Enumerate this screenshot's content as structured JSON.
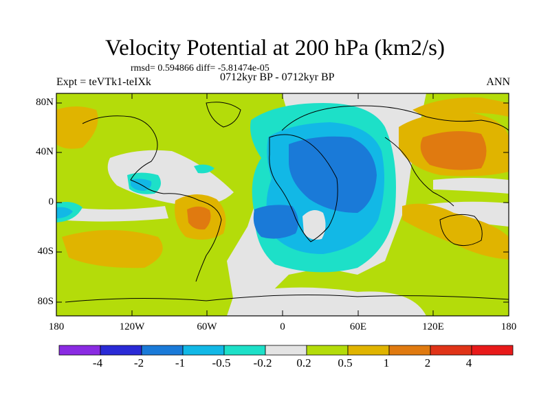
{
  "header": {
    "title": "Velocity Potential at 200 hPa (km2/s)",
    "stats": "rmsd= 0.594866 diff= -5.81474e-05",
    "experiment": "Expt = teVTk1-teIXk",
    "period": "0712kyr BP - 0712kyr BP",
    "season": "ANN"
  },
  "map": {
    "y_labels": [
      "80N",
      "40N",
      "0",
      "40S",
      "80S"
    ],
    "x_labels": [
      "180",
      "120W",
      "60W",
      "0",
      "60E",
      "120E",
      "180"
    ]
  },
  "colorbar": {
    "labels": [
      "-4",
      "-2",
      "-1",
      "-0.5",
      "-0.2",
      "0.2",
      "0.5",
      "1",
      "2",
      "4"
    ],
    "colors": [
      "#8a2be2",
      "#2a2ad6",
      "#1a7ad8",
      "#12b8e6",
      "#1de0c8",
      "#e4e4e4",
      "#b4dc0a",
      "#e0b400",
      "#e07a10",
      "#e03418",
      "#e81a1a"
    ]
  },
  "palette": {
    "neutral": "#e4e4e4",
    "green": "#b4dc0a",
    "yellow": "#e0b400",
    "orange": "#e07a10",
    "teal": "#1de0c8",
    "cyan": "#12b8e6",
    "blue": "#1a7ad8"
  }
}
